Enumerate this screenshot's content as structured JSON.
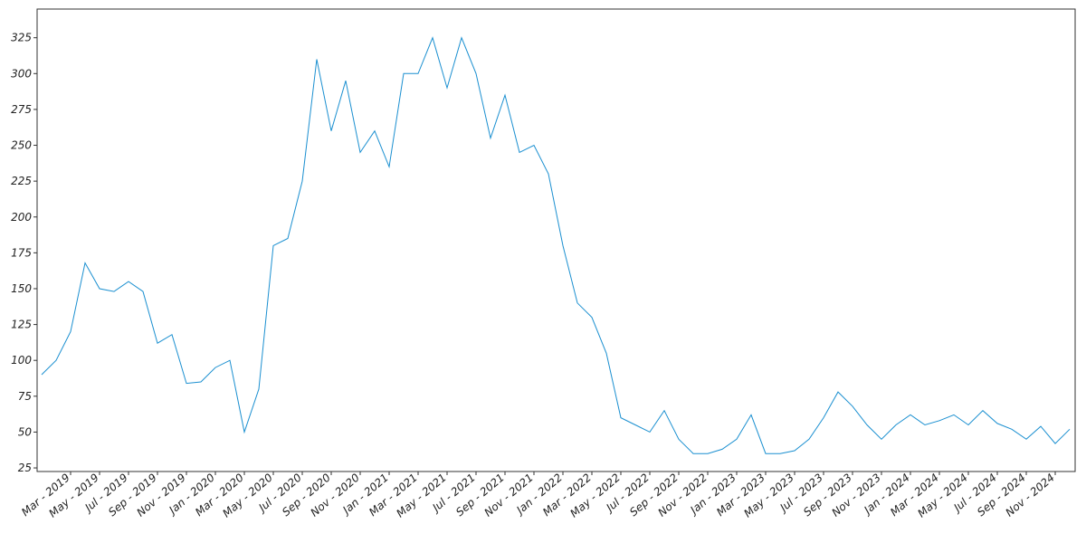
{
  "chart_data": {
    "type": "line",
    "x": [
      "2019-01",
      "2019-02",
      "2019-03",
      "2019-04",
      "2019-05",
      "2019-06",
      "2019-07",
      "2019-08",
      "2019-09",
      "2019-10",
      "2019-11",
      "2019-12",
      "2020-01",
      "2020-02",
      "2020-03",
      "2020-04",
      "2020-05",
      "2020-06",
      "2020-07",
      "2020-08",
      "2020-09",
      "2020-10",
      "2020-11",
      "2020-12",
      "2021-01",
      "2021-02",
      "2021-03",
      "2021-04",
      "2021-05",
      "2021-06",
      "2021-07",
      "2021-08",
      "2021-09",
      "2021-10",
      "2021-11",
      "2021-12",
      "2022-01",
      "2022-02",
      "2022-03",
      "2022-04",
      "2022-05",
      "2022-06",
      "2022-07",
      "2022-08",
      "2022-09",
      "2022-10",
      "2022-11",
      "2022-12",
      "2023-01",
      "2023-02",
      "2023-03",
      "2023-04",
      "2023-05",
      "2023-06",
      "2023-07",
      "2023-08",
      "2023-09",
      "2023-10",
      "2023-11",
      "2023-12",
      "2024-01",
      "2024-02",
      "2024-03",
      "2024-04",
      "2024-05",
      "2024-06",
      "2024-07",
      "2024-08",
      "2024-09",
      "2024-10",
      "2024-11",
      "2024-12"
    ],
    "series": [
      {
        "color": "#1a8fd0",
        "values": [
          90,
          100,
          120,
          168,
          150,
          148,
          155,
          148,
          112,
          118,
          84,
          85,
          95,
          100,
          50,
          80,
          180,
          185,
          225,
          310,
          260,
          295,
          245,
          260,
          235,
          300,
          300,
          325,
          290,
          325,
          300,
          255,
          285,
          245,
          250,
          230,
          180,
          140,
          130,
          105,
          60,
          55,
          50,
          65,
          45,
          35,
          35,
          38,
          45,
          62,
          35,
          35,
          37,
          45,
          60,
          78,
          68,
          55,
          45,
          55,
          62,
          55,
          58,
          62,
          55,
          65,
          56,
          52,
          45,
          54,
          42,
          52
        ]
      }
    ],
    "xlim": [
      "2019-01",
      "2024-12"
    ],
    "xticks": [
      {
        "value": "2019-03",
        "label": "Mar - 2019"
      },
      {
        "value": "2019-05",
        "label": "May - 2019"
      },
      {
        "value": "2019-07",
        "label": "Jul - 2019"
      },
      {
        "value": "2019-09",
        "label": "Sep - 2019"
      },
      {
        "value": "2019-11",
        "label": "Nov - 2019"
      },
      {
        "value": "2020-01",
        "label": "Jan - 2020"
      },
      {
        "value": "2020-03",
        "label": "Mar - 2020"
      },
      {
        "value": "2020-05",
        "label": "May - 2020"
      },
      {
        "value": "2020-07",
        "label": "Jul - 2020"
      },
      {
        "value": "2020-09",
        "label": "Sep - 2020"
      },
      {
        "value": "2020-11",
        "label": "Nov - 2020"
      },
      {
        "value": "2021-01",
        "label": "Jan - 2021"
      },
      {
        "value": "2021-03",
        "label": "Mar - 2021"
      },
      {
        "value": "2021-05",
        "label": "May - 2021"
      },
      {
        "value": "2021-07",
        "label": "Jul - 2021"
      },
      {
        "value": "2021-09",
        "label": "Sep - 2021"
      },
      {
        "value": "2021-11",
        "label": "Nov - 2021"
      },
      {
        "value": "2022-01",
        "label": "Jan - 2022"
      },
      {
        "value": "2022-03",
        "label": "Mar - 2022"
      },
      {
        "value": "2022-05",
        "label": "May - 2022"
      },
      {
        "value": "2022-07",
        "label": "Jul - 2022"
      },
      {
        "value": "2022-09",
        "label": "Sep - 2022"
      },
      {
        "value": "2022-11",
        "label": "Nov - 2022"
      },
      {
        "value": "2023-01",
        "label": "Jan - 2023"
      },
      {
        "value": "2023-03",
        "label": "Mar - 2023"
      },
      {
        "value": "2023-05",
        "label": "May - 2023"
      },
      {
        "value": "2023-07",
        "label": "Jul - 2023"
      },
      {
        "value": "2023-09",
        "label": "Sep - 2023"
      },
      {
        "value": "2023-11",
        "label": "Nov - 2023"
      },
      {
        "value": "2024-01",
        "label": "Jan - 2024"
      },
      {
        "value": "2024-03",
        "label": "Mar - 2024"
      },
      {
        "value": "2024-05",
        "label": "May - 2024"
      },
      {
        "value": "2024-07",
        "label": "Jul - 2024"
      },
      {
        "value": "2024-09",
        "label": "Sep - 2024"
      },
      {
        "value": "2024-11",
        "label": "Nov - 2024"
      }
    ],
    "ylim": [
      22.5,
      345
    ],
    "yticks": [
      25,
      50,
      75,
      100,
      125,
      150,
      175,
      200,
      225,
      250,
      275,
      300,
      325
    ],
    "grid": false
  }
}
